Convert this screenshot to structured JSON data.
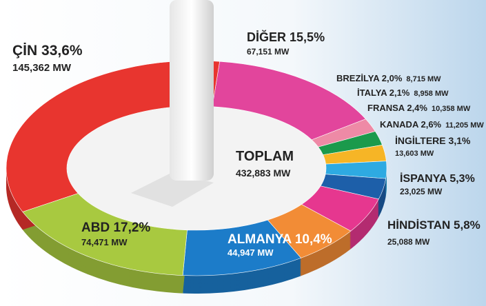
{
  "chart_data": {
    "type": "donut",
    "categories": [
      "DİĞER",
      "BREZİLYA",
      "İTALYA",
      "FRANSA",
      "KANADA",
      "İNGİLTERE",
      "İSPANYA",
      "HİNDİSTAN",
      "ALMANYA",
      "ABD",
      "ÇİN"
    ],
    "values": [
      15.5,
      2.0,
      2.1,
      2.4,
      2.6,
      3.1,
      5.3,
      5.8,
      10.4,
      17.2,
      33.6
    ],
    "value_labels": [
      "15,5%",
      "2,0%",
      "2,1%",
      "2,4%",
      "2,6%",
      "3,1%",
      "5,3%",
      "5,8%",
      "10,4%",
      "17,2%",
      "33,6%"
    ],
    "capacity": [
      "67,151 MW",
      "8,715 MW",
      "8,958 MW",
      "10,358 MW",
      "11,205 MW",
      "13,603 MW",
      "23,025 MW",
      "25,088 MW",
      "44,947 MW",
      "74,471 MW",
      "145,362 MW"
    ],
    "colors": [
      "#e2459c",
      "#ee8aa6",
      "#1b9a4c",
      "#f6b526",
      "#2eaae2",
      "#1d5fa9",
      "#e6378f",
      "#f28c36",
      "#1c7cc9",
      "#a8c940",
      "#e8352f"
    ],
    "total_label": "TOPLAM",
    "total": "432,883 MW"
  }
}
